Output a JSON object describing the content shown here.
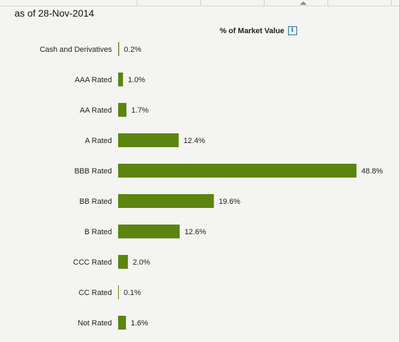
{
  "as_of": "as of 28-Nov-2014",
  "header": {
    "label": "% of Market Value",
    "info_icon": "info-icon"
  },
  "colors": {
    "bar": "#5b850f",
    "background": "#f4f4f2"
  },
  "chart_data": {
    "type": "bar",
    "orientation": "horizontal",
    "title": "",
    "xlabel": "% of Market Value",
    "ylabel": "",
    "categories": [
      "Cash and Derivatives",
      "AAA Rated",
      "AA Rated",
      "A Rated",
      "BBB Rated",
      "BB Rated",
      "B Rated",
      "CCC Rated",
      "CC Rated",
      "Not Rated"
    ],
    "values": [
      0.2,
      1.0,
      1.7,
      12.4,
      48.8,
      19.6,
      12.6,
      2.0,
      0.1,
      1.6
    ],
    "value_labels": [
      "0.2%",
      "1.0%",
      "1.7%",
      "12.4%",
      "48.8%",
      "19.6%",
      "12.6%",
      "2.0%",
      "0.1%",
      "1.6%"
    ],
    "xlim": [
      0,
      48.8
    ],
    "grid": false,
    "legend": "none"
  }
}
